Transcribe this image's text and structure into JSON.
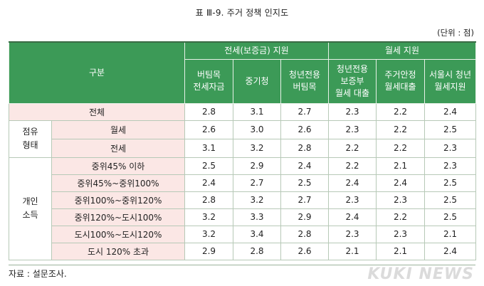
{
  "title": "표 Ⅲ-9. 주거 정책 인지도",
  "unit": "(단위 : 점)",
  "header": {
    "category": "구분",
    "group_jeonse": "전세(보증금) 지원",
    "group_wolse": "월세 지원",
    "columns": [
      "버팀목\n전세자금",
      "중기청",
      "청년전용\n버팀목",
      "청년전용\n보증부\n월세 대출",
      "주거안정\n월세대출",
      "서울시 청년\n월세지원"
    ]
  },
  "rows": {
    "total": {
      "label": "전체",
      "values": [
        "2.8",
        "3.1",
        "2.7",
        "2.3",
        "2.2",
        "2.4"
      ]
    },
    "tenure": {
      "group": "점유\n형태",
      "items": [
        {
          "label": "월세",
          "values": [
            "2.6",
            "3.0",
            "2.6",
            "2.3",
            "2.2",
            "2.5"
          ]
        },
        {
          "label": "전세",
          "values": [
            "3.1",
            "3.2",
            "2.8",
            "2.2",
            "2.2",
            "2.3"
          ]
        }
      ]
    },
    "income": {
      "group": "개인\n소득",
      "items": [
        {
          "label": "중위45% 이하",
          "values": [
            "2.5",
            "2.9",
            "2.4",
            "2.2",
            "2.1",
            "2.3"
          ]
        },
        {
          "label": "중위45%~중위100%",
          "values": [
            "2.4",
            "2.7",
            "2.5",
            "2.4",
            "2.4",
            "2.5"
          ]
        },
        {
          "label": "중위100%~중위120%",
          "values": [
            "2.8",
            "3.2",
            "2.7",
            "2.3",
            "2.3",
            "2.5"
          ]
        },
        {
          "label": "중위120%~도시100%",
          "values": [
            "3.2",
            "3.3",
            "2.9",
            "2.4",
            "2.2",
            "2.5"
          ]
        },
        {
          "label": "도시100%~도시120%",
          "values": [
            "3.2",
            "3.4",
            "2.8",
            "2.3",
            "2.3",
            "2.1"
          ]
        },
        {
          "label": "도시 120% 초과",
          "values": [
            "2.9",
            "2.8",
            "2.6",
            "2.1",
            "2.1",
            "2.4"
          ]
        }
      ]
    }
  },
  "source": "자료 : 설문조사.",
  "watermark": "KUKI NEWS",
  "colors": {
    "header_bg": "#3c9a57",
    "label_bg": "#fbe7e5"
  }
}
